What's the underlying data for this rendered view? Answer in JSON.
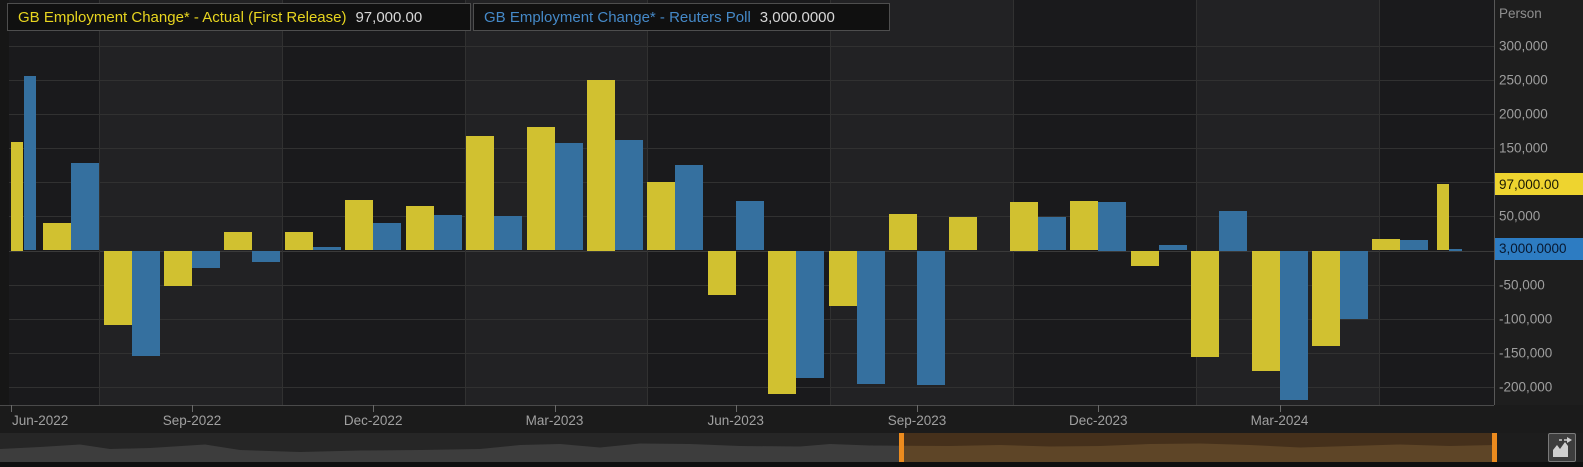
{
  "colors": {
    "actual_bar": "#d1c130",
    "poll_bar": "#35709f",
    "actual_text": "#e8d51f",
    "poll_text": "#4589c8",
    "highlight_actual_bg": "#eed42f",
    "highlight_actual_fg": "#1a1a05",
    "highlight_poll_bg": "#2d7cc2",
    "highlight_poll_fg": "#081830",
    "nav_selection_bg": "#45301b",
    "nav_selection_wave": "#5e4527",
    "nav_outside_bg": "#262626",
    "nav_outside_wave": "#3d3d3d",
    "nav_handle": "#ec8b1e"
  },
  "legend": {
    "items": [
      {
        "label": "GB Employment Change* - Actual (First Release)",
        "value": "97,000.00"
      },
      {
        "label": "GB Employment Change* - Reuters Poll",
        "value": "3,000.0000"
      }
    ]
  },
  "y_axis": {
    "unit": "Person",
    "ticks": [
      {
        "text": "300,000",
        "value": 300000
      },
      {
        "text": "250,000",
        "value": 250000
      },
      {
        "text": "200,000",
        "value": 200000
      },
      {
        "text": "150,000",
        "value": 150000
      },
      {
        "text": "50,000",
        "value": 50000
      },
      {
        "text": "-50,000",
        "value": -50000
      },
      {
        "text": "-100,000",
        "value": -100000
      },
      {
        "text": "-150,000",
        "value": -150000
      },
      {
        "text": "-200,000",
        "value": -200000
      }
    ],
    "highlights": [
      {
        "text": "97,000.00",
        "value": 97000,
        "series": "actual"
      },
      {
        "text": "3,000.0000",
        "value": 3000,
        "series": "poll"
      }
    ]
  },
  "x_axis": {
    "labels": [
      "Jun-2022",
      "Sep-2022",
      "Dec-2022",
      "Mar-2023",
      "Jun-2023",
      "Sep-2023",
      "Dec-2023",
      "Mar-2024"
    ]
  },
  "chart_data": {
    "type": "bar",
    "title": "GB Employment Change* - Actual (First Release) vs Reuters Poll",
    "ylabel": "Person",
    "ylim": [
      -250000,
      330000
    ],
    "grid": true,
    "legend_position": "top-left",
    "categories": [
      "Jun-2022",
      "Jul-2022",
      "Aug-2022",
      "Sep-2022",
      "Oct-2022",
      "Nov-2022",
      "Dec-2022",
      "Jan-2023",
      "Feb-2023",
      "Mar-2023",
      "Apr-2023",
      "May-2023",
      "Jun-2023",
      "Jul-2023",
      "Aug-2023",
      "Sep-2023",
      "Oct-2023",
      "Nov-2023",
      "Dec-2023",
      "Jan-2024",
      "Feb-2024",
      "Mar-2024",
      "Apr-2024",
      "May-2024",
      "Jun-2024"
    ],
    "series": [
      {
        "name": "GB Employment Change* - Actual (First Release)",
        "values": [
          160000,
          40000,
          -110000,
          -52000,
          27000,
          27000,
          74000,
          65000,
          168000,
          182000,
          250000,
          101000,
          -66000,
          -210000,
          -82000,
          54000,
          49000,
          72000,
          73000,
          -22000,
          -157000,
          -177000,
          -140000,
          17000,
          97000
        ]
      },
      {
        "name": "GB Employment Change* - Reuters Poll",
        "values": [
          256000,
          128000,
          -155000,
          -25000,
          -17000,
          5000,
          40000,
          52000,
          50000,
          158000,
          162000,
          125000,
          73000,
          -187000,
          -196000,
          -197000,
          null,
          49000,
          72000,
          8000,
          58000,
          -220000,
          -101000,
          16000,
          3000
        ]
      }
    ]
  },
  "navigator": {
    "selection_start_label": "selection start",
    "selection_end_label": "selection end"
  },
  "icons": {
    "popout": "chart-popout-icon"
  }
}
